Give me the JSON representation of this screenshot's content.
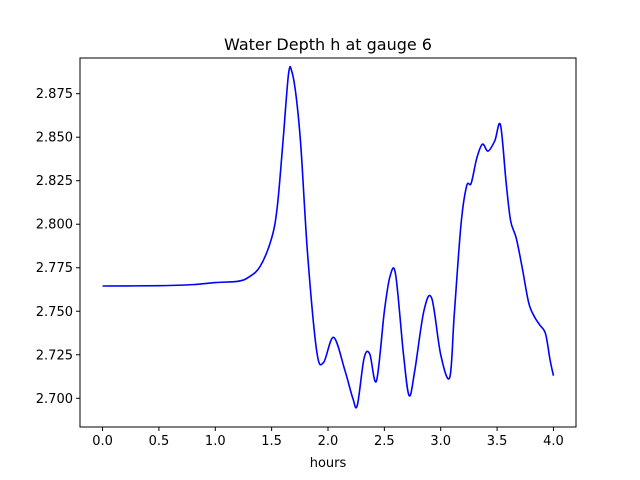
{
  "chart_data": {
    "type": "line",
    "title": "Water Depth h at gauge 6",
    "xlabel": "hours",
    "ylabel": "",
    "xlim": [
      -0.2,
      4.2
    ],
    "ylim": [
      2.6835,
      2.8955
    ],
    "xticks": [
      0.0,
      0.5,
      1.0,
      1.5,
      2.0,
      2.5,
      3.0,
      3.5,
      4.0
    ],
    "xtick_labels": [
      "0.0",
      "0.5",
      "1.0",
      "1.5",
      "2.0",
      "2.5",
      "3.0",
      "3.5",
      "4.0"
    ],
    "yticks": [
      2.7,
      2.725,
      2.75,
      2.775,
      2.8,
      2.825,
      2.85,
      2.875
    ],
    "ytick_labels": [
      "2.700",
      "2.725",
      "2.750",
      "2.775",
      "2.800",
      "2.825",
      "2.850",
      "2.875"
    ],
    "grid": false,
    "series": [
      {
        "color": "#0000ff",
        "x": [
          0.0,
          0.5,
          0.8,
          1.0,
          1.2,
          1.3,
          1.4,
          1.5,
          1.55,
          1.6,
          1.65,
          1.68,
          1.72,
          1.76,
          1.82,
          1.9,
          1.96,
          2.05,
          2.15,
          2.22,
          2.26,
          2.32,
          2.37,
          2.43,
          2.5,
          2.55,
          2.6,
          2.67,
          2.72,
          2.77,
          2.85,
          2.92,
          3.0,
          3.08,
          3.12,
          3.18,
          3.23,
          3.27,
          3.32,
          3.37,
          3.42,
          3.48,
          3.53,
          3.58,
          3.62,
          3.67,
          3.72,
          3.78,
          3.83,
          3.88,
          3.93,
          3.97,
          4.0
        ],
        "y": [
          2.7645,
          2.7647,
          2.7653,
          2.7665,
          2.7672,
          2.7697,
          2.776,
          2.792,
          2.81,
          2.847,
          2.8865,
          2.8875,
          2.872,
          2.844,
          2.782,
          2.727,
          2.7205,
          2.735,
          2.716,
          2.7,
          2.696,
          2.723,
          2.7255,
          2.71,
          2.75,
          2.77,
          2.771,
          2.725,
          2.7015,
          2.716,
          2.75,
          2.7575,
          2.725,
          2.712,
          2.748,
          2.8,
          2.822,
          2.8235,
          2.838,
          2.846,
          2.842,
          2.848,
          2.857,
          2.824,
          2.802,
          2.792,
          2.776,
          2.755,
          2.747,
          2.742,
          2.737,
          2.722,
          2.713
        ]
      }
    ]
  }
}
